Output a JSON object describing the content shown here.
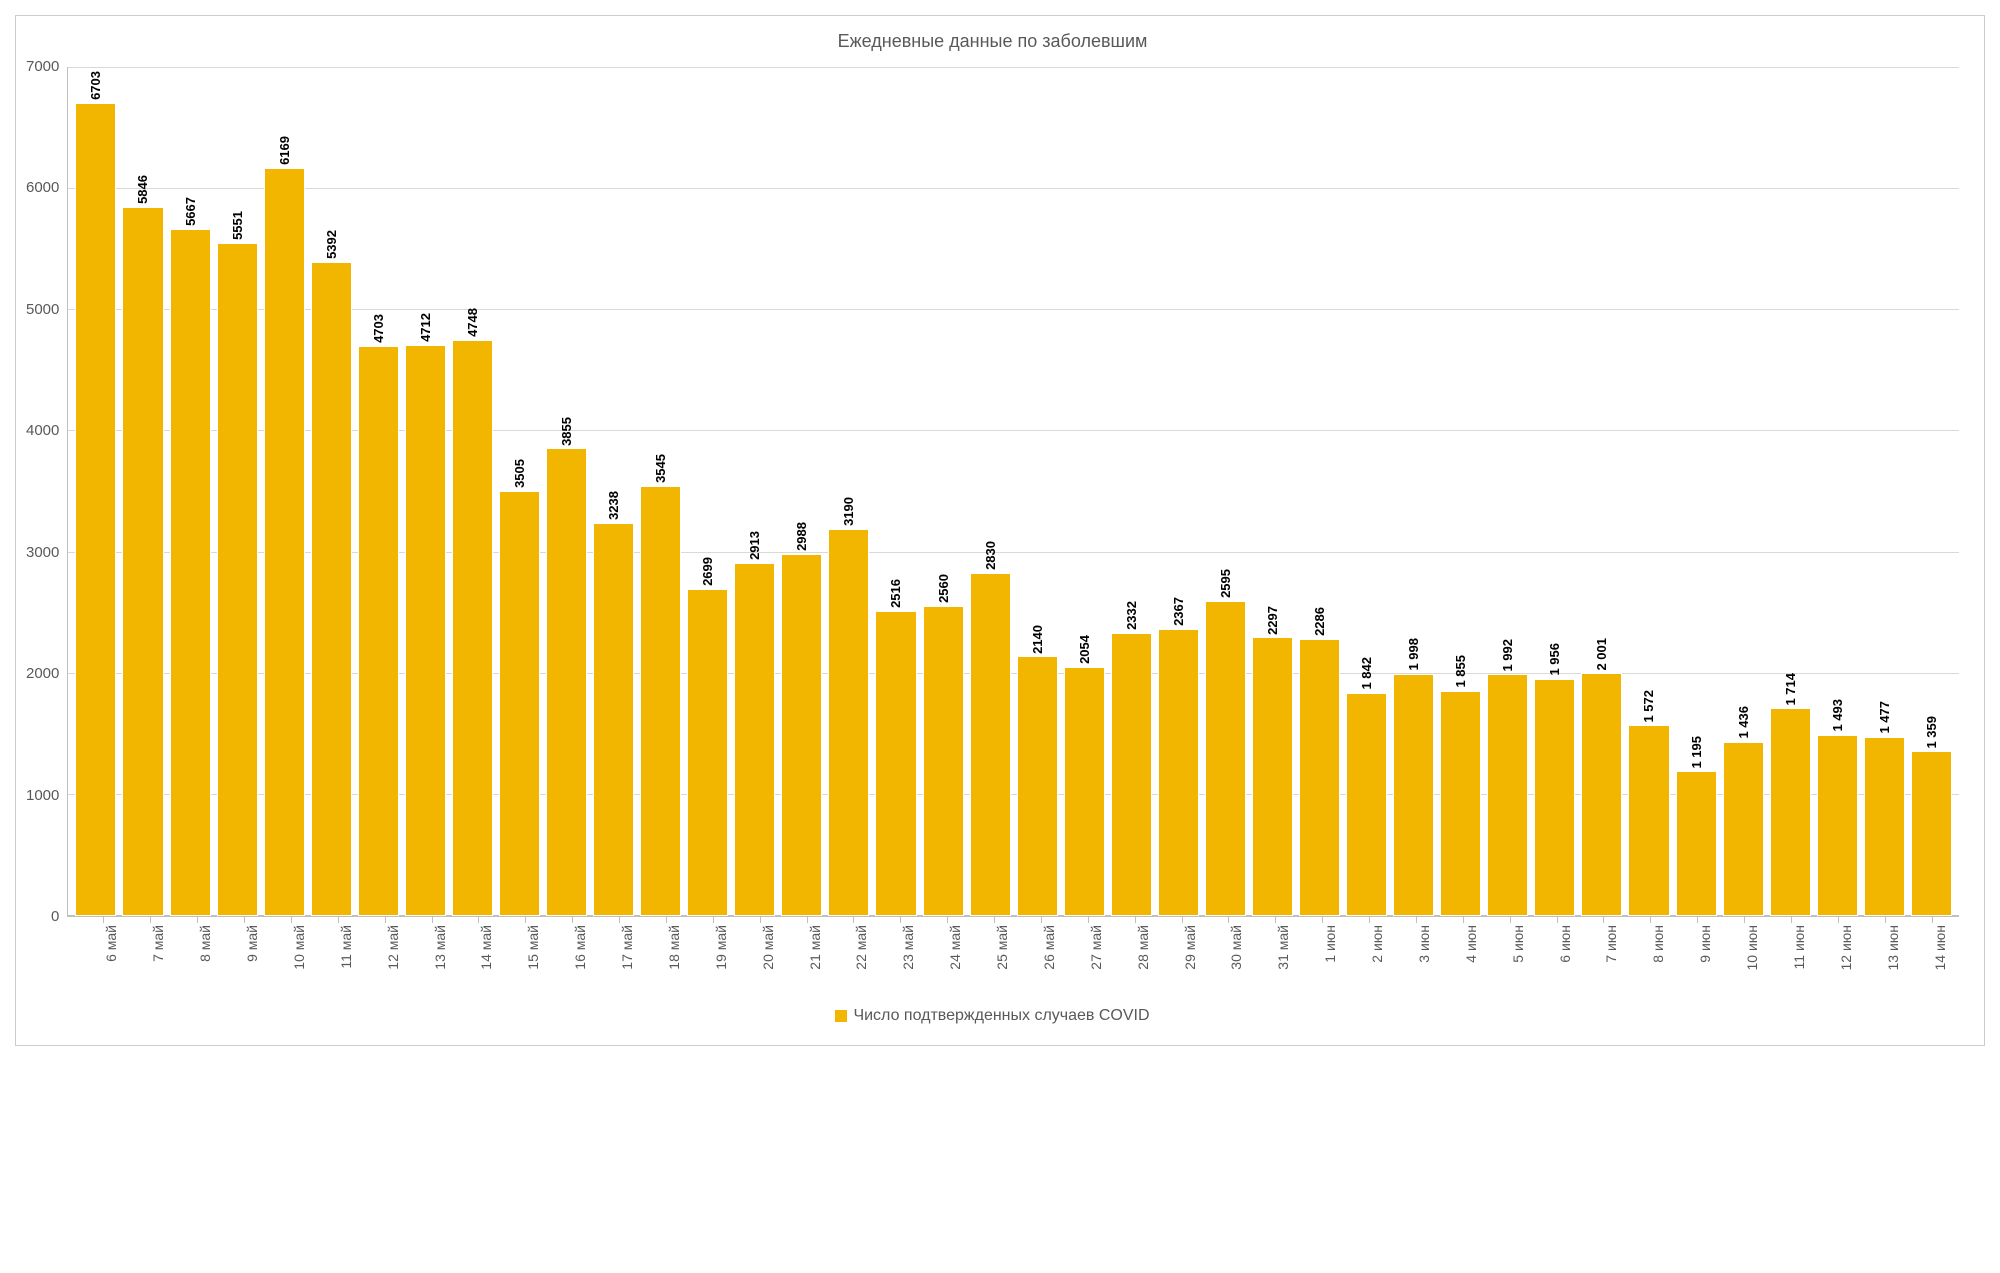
{
  "chart": {
    "type": "bar",
    "title": "Ежедневные данные по заболевшим",
    "title_fontsize": 18,
    "title_color": "#595959",
    "background_color": "#ffffff",
    "border_color": "#cccccc",
    "bar_color": "#f2b600",
    "bar_border_color": "#ffffff",
    "grid_color": "#d9d9d9",
    "axis_line_color": "#bfbfbf",
    "label_color": "#595959",
    "data_label_color": "#000000",
    "data_label_fontsize": 13,
    "data_label_fontweight": "bold",
    "axis_fontsize": 15,
    "xaxis_fontsize": 14,
    "bar_width_ratio": 0.75,
    "ylim": [
      0,
      7000
    ],
    "ytick_step": 1000,
    "yticks": [
      "7000",
      "6000",
      "5000",
      "4000",
      "3000",
      "2000",
      "1000",
      "0"
    ],
    "legend": {
      "label": "Число подтвержденных случаев COVID",
      "fontsize": 16,
      "swatch_color": "#f2b600"
    },
    "categories": [
      "6 май",
      "7 май",
      "8 май",
      "9 май",
      "10 май",
      "11 май",
      "12 май",
      "13 май",
      "14 май",
      "15 май",
      "16 май",
      "17 май",
      "18 май",
      "19 май",
      "20 май",
      "21 май",
      "22 май",
      "23 май",
      "24 май",
      "25 май",
      "26 май",
      "27 май",
      "28 май",
      "29 май",
      "30 май",
      "31 май",
      "1 июн",
      "2 июн",
      "3 июн",
      "4 июн",
      "5 июн",
      "6 июн",
      "7 июн",
      "8 июн",
      "9 июн",
      "10 июн",
      "11 июн",
      "12 июн",
      "13 июн",
      "14 июн"
    ],
    "values": [
      6703,
      5846,
      5667,
      5551,
      6169,
      5392,
      4703,
      4712,
      4748,
      3505,
      3855,
      3238,
      3545,
      2699,
      2913,
      2988,
      3190,
      2516,
      2560,
      2830,
      2140,
      2054,
      2332,
      2367,
      2595,
      2297,
      2286,
      1842,
      1998,
      1855,
      1992,
      1956,
      2001,
      1572,
      1195,
      1436,
      1714,
      1493,
      1477,
      1359
    ],
    "value_labels": [
      "6703",
      "5846",
      "5667",
      "5551",
      "6169",
      "5392",
      "4703",
      "4712",
      "4748",
      "3505",
      "3855",
      "3238",
      "3545",
      "2699",
      "2913",
      "2988",
      "3190",
      "2516",
      "2560",
      "2830",
      "2140",
      "2054",
      "2332",
      "2367",
      "2595",
      "2297",
      "2286",
      "1 842",
      "1 998",
      "1 855",
      "1 992",
      "1 956",
      "2 001",
      "1 572",
      "1 195",
      "1 436",
      "1 714",
      "1 493",
      "1 477",
      "1 359"
    ]
  }
}
